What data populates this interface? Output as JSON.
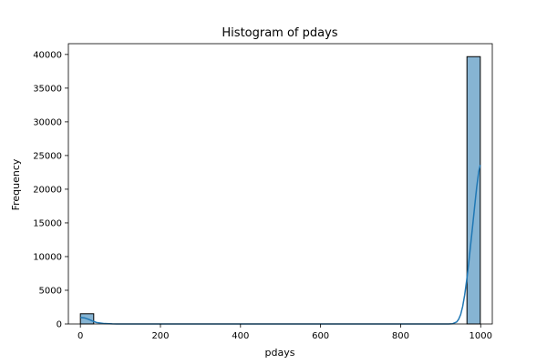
{
  "chart_data": {
    "type": "bar",
    "title": "Histogram of pdays",
    "xlabel": "pdays",
    "ylabel": "Frequency",
    "xlim": [
      -30,
      1029
    ],
    "ylim": [
      0,
      41600
    ],
    "xticks": [
      0,
      200,
      400,
      600,
      800,
      1000
    ],
    "yticks": [
      0,
      5000,
      10000,
      15000,
      20000,
      25000,
      30000,
      35000,
      40000
    ],
    "bins": [
      {
        "x0": 0,
        "x1": 33.3,
        "count": 1515
      },
      {
        "x0": 965.7,
        "x1": 999,
        "count": 39673
      }
    ],
    "kde": {
      "x": [
        0,
        10,
        20,
        30,
        40,
        60,
        80,
        100,
        150,
        200,
        300,
        400,
        500,
        600,
        700,
        800,
        850,
        900,
        920,
        930,
        940,
        945,
        950,
        955,
        960,
        965,
        970,
        975,
        980,
        985,
        990,
        995,
        999
      ],
      "y": [
        960,
        900,
        700,
        450,
        220,
        60,
        10,
        2,
        0,
        0,
        0,
        0,
        0,
        0,
        0,
        0,
        0,
        0,
        5,
        40,
        300,
        700,
        1400,
        2600,
        4300,
        6500,
        9000,
        11800,
        14600,
        17500,
        20300,
        22600,
        23600
      ]
    },
    "colors": {
      "bar_fill": "#86b4d3",
      "bar_edge": "#000000",
      "kde_line": "#1f77b4"
    }
  }
}
